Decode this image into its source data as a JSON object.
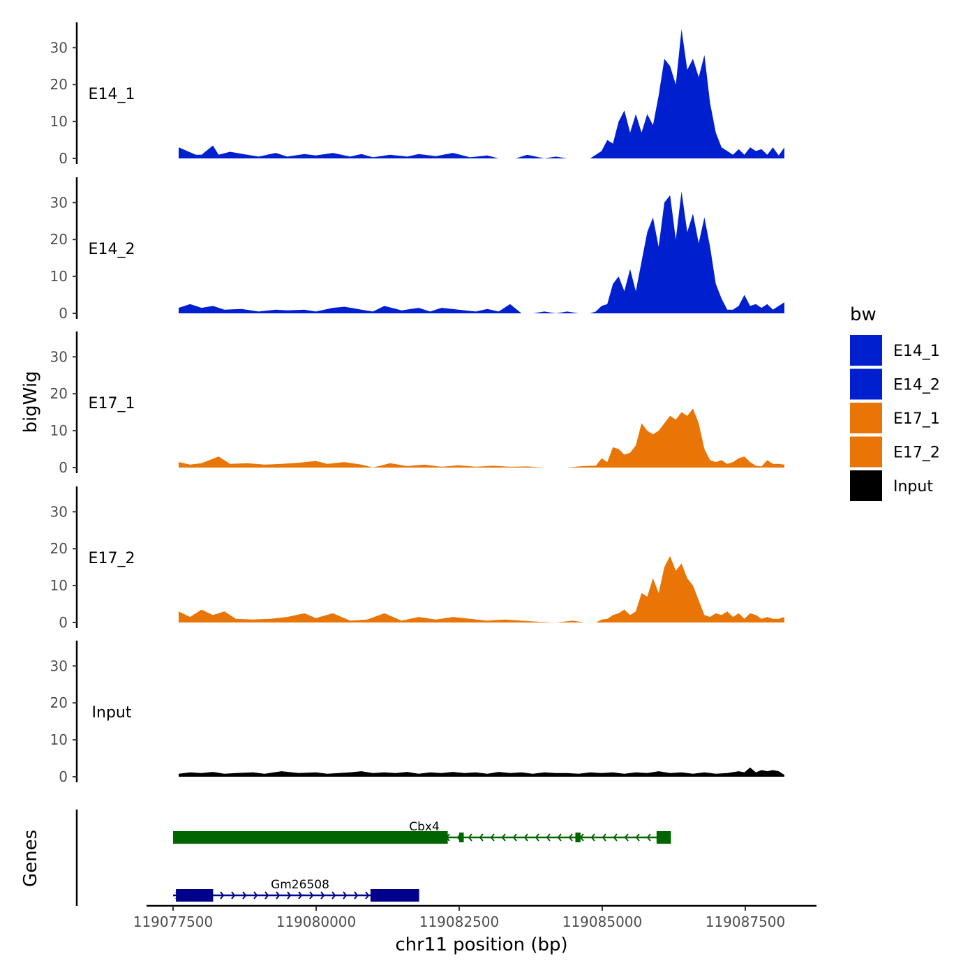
{
  "chart_data": {
    "type": "area",
    "title": "",
    "ylabel": "bigWig",
    "xlabel": "chr11 position (bp)",
    "ylim": [
      0,
      37
    ],
    "y_ticks": [
      0,
      10,
      20,
      30
    ],
    "xlim": [
      119076900,
      119088800
    ],
    "x_ticks": [
      119077500,
      119080000,
      119082500,
      119085000,
      119087500
    ],
    "x_tick_labels": [
      "119077500",
      "119080000",
      "119082500",
      "119085000",
      "119087500"
    ],
    "genes_label": "Genes",
    "legend": {
      "title": "bw",
      "entries": [
        {
          "name": "E14_1",
          "color": "#0020d0"
        },
        {
          "name": "E14_2",
          "color": "#0020d0"
        },
        {
          "name": "E17_1",
          "color": "#e87505"
        },
        {
          "name": "E17_2",
          "color": "#e87505"
        },
        {
          "name": "Input",
          "color": "#000000"
        }
      ]
    },
    "tracks": [
      {
        "name": "E14_1",
        "color": "#0020d0",
        "x": [
          119077600,
          119077900,
          119078000,
          119078200,
          119078300,
          119078500,
          119078800,
          119079000,
          119079300,
          119079500,
          119079800,
          119080000,
          119080300,
          119080600,
          119080800,
          119081000,
          119081300,
          119081600,
          119081800,
          119082100,
          119082400,
          119082700,
          119083000,
          119083200,
          119083500,
          119083700,
          119084000,
          119084200,
          119084400,
          119084600,
          119084800,
          119084900,
          119085000,
          119085100,
          119085200,
          119085300,
          119085400,
          119085500,
          119085600,
          119085700,
          119085800,
          119085900,
          119086000,
          119086100,
          119086200,
          119086300,
          119086400,
          119086500,
          119086600,
          119086700,
          119086800,
          119086900,
          119087000,
          119087100,
          119087200,
          119087300,
          119087400,
          119087500,
          119087600,
          119087700,
          119087800,
          119087900,
          119088000,
          119088100,
          119088200
        ],
        "y": [
          3,
          1,
          1,
          3.5,
          1,
          1.8,
          1,
          0.5,
          1.5,
          0.5,
          1.2,
          0.8,
          1.5,
          0.5,
          1.2,
          0.3,
          1,
          0.5,
          1.2,
          0.6,
          1.5,
          0.3,
          0.8,
          0,
          0,
          1,
          0,
          0.5,
          0,
          0,
          0,
          1,
          2,
          5,
          4,
          10,
          13,
          7,
          12,
          7,
          12,
          9,
          17,
          27,
          25,
          20,
          35,
          24,
          27,
          22,
          28,
          15,
          7,
          3,
          2,
          1,
          2.5,
          1,
          3,
          2,
          2.5,
          1,
          3,
          0.8,
          3
        ]
      },
      {
        "name": "E14_2",
        "color": "#0020d0",
        "x": [
          119077600,
          119077800,
          119078000,
          119078200,
          119078400,
          119078700,
          119079000,
          119079300,
          119079500,
          119079800,
          119080000,
          119080300,
          119080500,
          119080800,
          119081000,
          119081200,
          119081500,
          119081800,
          119082000,
          119082200,
          119082500,
          119082800,
          119083000,
          119083200,
          119083400,
          119083600,
          119083800,
          119084000,
          119084200,
          119084400,
          119084600,
          119084800,
          119084900,
          119085000,
          119085100,
          119085200,
          119085300,
          119085400,
          119085500,
          119085600,
          119085700,
          119085800,
          119085900,
          119086000,
          119086100,
          119086200,
          119086300,
          119086400,
          119086500,
          119086600,
          119086700,
          119086800,
          119086900,
          119087000,
          119087100,
          119087200,
          119087300,
          119087400,
          119087500,
          119087600,
          119087700,
          119087800,
          119087900,
          119088000,
          119088100,
          119088200
        ],
        "y": [
          1.5,
          2.5,
          1.5,
          2,
          1,
          1.2,
          0.5,
          1,
          0.8,
          1,
          0.5,
          1.5,
          1.8,
          1,
          0.5,
          2,
          0.8,
          1.5,
          0.5,
          1.5,
          1,
          0.5,
          1.2,
          0.5,
          2.5,
          0,
          0,
          0.5,
          0,
          0.5,
          0,
          0,
          0.5,
          2,
          2.5,
          8,
          10,
          6,
          12,
          6,
          14,
          22,
          26,
          18,
          30,
          32,
          20,
          33,
          22,
          27,
          19,
          26,
          18,
          8,
          4,
          1,
          1,
          2,
          5,
          2,
          2.5,
          1.5,
          2.5,
          1,
          2,
          3
        ]
      },
      {
        "name": "E17_1",
        "color": "#e87505",
        "x": [
          119077600,
          119077800,
          119078000,
          119078300,
          119078500,
          119078800,
          119079100,
          119079400,
          119079700,
          119080000,
          119080200,
          119080500,
          119080800,
          119081000,
          119081300,
          119081600,
          119081900,
          119082200,
          119082500,
          119082800,
          119083100,
          119083400,
          119083700,
          119084000,
          119084200,
          119084400,
          119084600,
          119084800,
          119084900,
          119085000,
          119085100,
          119085200,
          119085300,
          119085400,
          119085500,
          119085600,
          119085700,
          119085800,
          119085900,
          119086000,
          119086100,
          119086200,
          119086300,
          119086400,
          119086500,
          119086600,
          119086700,
          119086800,
          119086900,
          119087000,
          119087100,
          119087200,
          119087300,
          119087400,
          119087500,
          119087600,
          119087700,
          119087800,
          119087900,
          119088000,
          119088100,
          119088200
        ],
        "y": [
          1.5,
          0.8,
          1.2,
          3,
          1,
          1.2,
          0.8,
          1,
          1.3,
          1.8,
          1,
          1.5,
          0.8,
          0,
          1.2,
          0.4,
          0.8,
          0.2,
          0.6,
          0.2,
          0.5,
          0.2,
          0.3,
          0,
          0,
          0,
          0.3,
          0.5,
          0.5,
          2.5,
          1.5,
          5.5,
          5,
          3.5,
          4,
          6,
          12,
          10,
          9,
          10,
          12,
          14,
          13,
          15,
          14,
          16,
          12,
          5,
          2,
          1.5,
          2,
          1,
          1.5,
          2.5,
          3,
          1.5,
          0.5,
          0.3,
          2,
          1,
          1,
          0.8
        ]
      },
      {
        "name": "E17_2",
        "color": "#e87505",
        "x": [
          119077600,
          119077800,
          119078000,
          119078200,
          119078400,
          119078600,
          119078900,
          119079200,
          119079500,
          119079800,
          119080000,
          119080300,
          119080600,
          119080900,
          119081200,
          119081500,
          119081800,
          119082100,
          119082400,
          119082700,
          119083000,
          119083300,
          119083600,
          119083900,
          119084200,
          119084500,
          119084700,
          119084900,
          119085000,
          119085100,
          119085200,
          119085300,
          119085400,
          119085500,
          119085600,
          119085700,
          119085800,
          119085900,
          119086000,
          119086100,
          119086200,
          119086300,
          119086400,
          119086500,
          119086600,
          119086700,
          119086800,
          119086900,
          119087000,
          119087100,
          119087200,
          119087300,
          119087400,
          119087500,
          119087600,
          119087700,
          119087800,
          119087900,
          119088000,
          119088100,
          119088200
        ],
        "y": [
          3,
          1.5,
          3.5,
          2,
          3,
          1,
          0.8,
          1,
          1.5,
          2.5,
          1.2,
          2.5,
          0.5,
          0.8,
          2.5,
          0.5,
          1.5,
          0.8,
          1.5,
          1,
          0.5,
          0.8,
          0.5,
          0.2,
          0,
          0.5,
          0,
          0,
          0.8,
          1,
          2,
          2.5,
          3.5,
          2,
          3,
          8,
          7,
          12,
          8,
          15,
          18,
          14,
          16,
          12,
          10,
          6,
          2,
          1.5,
          2.5,
          2,
          3,
          1.5,
          2.5,
          1,
          2.5,
          2,
          1,
          1.5,
          1,
          1,
          1.5
        ]
      },
      {
        "name": "Input",
        "color": "#000000",
        "x": [
          119077600,
          119077800,
          119078000,
          119078200,
          119078400,
          119078600,
          119078900,
          119079100,
          119079400,
          119079700,
          119080000,
          119080200,
          119080400,
          119080600,
          119080800,
          119081000,
          119081200,
          119081400,
          119081600,
          119081800,
          119082000,
          119082200,
          119082400,
          119082600,
          119082800,
          119083000,
          119083200,
          119083400,
          119083600,
          119083800,
          119084000,
          119084200,
          119084400,
          119084600,
          119084800,
          119085000,
          119085200,
          119085400,
          119085600,
          119085800,
          119086000,
          119086200,
          119086400,
          119086600,
          119086800,
          119087000,
          119087200,
          119087400,
          119087500,
          119087600,
          119087700,
          119087800,
          119087900,
          119088000,
          119088100,
          119088200
        ],
        "y": [
          0.8,
          1.2,
          1,
          1.3,
          0.8,
          1,
          1.2,
          0.8,
          1.5,
          1,
          1.2,
          0.8,
          1,
          1.2,
          1.5,
          1,
          1.2,
          1,
          1.3,
          0.8,
          1.2,
          1,
          1.3,
          1,
          1.2,
          0.8,
          1.3,
          1,
          1.2,
          0.8,
          1.2,
          1,
          1,
          0.8,
          1.2,
          1,
          1.2,
          0.8,
          1.2,
          1,
          1.5,
          1,
          1.2,
          0.8,
          1.2,
          0.8,
          1,
          1.5,
          1.2,
          2.5,
          1.2,
          1.8,
          1.5,
          1.8,
          1.5,
          0.5
        ]
      }
    ],
    "genes": [
      {
        "name": "Cbx4",
        "color": "#006400",
        "start": 119077500,
        "end": 119086200,
        "strand": "-",
        "row": 1,
        "exons": [
          [
            119077500,
            119082300,
            "thick"
          ],
          [
            119082500,
            119082580,
            "thin"
          ],
          [
            119084530,
            119084620,
            "thin"
          ],
          [
            119085950,
            119086000,
            "thin"
          ],
          [
            119085950,
            119086200,
            "thick"
          ]
        ]
      },
      {
        "name": "Gm26508",
        "color": "#00008b",
        "start": 119077500,
        "end": 119081800,
        "strand": "+",
        "row": 2,
        "exons": [
          [
            119077550,
            119078200,
            "thick"
          ],
          [
            119080950,
            119081800,
            "thick"
          ]
        ]
      }
    ]
  }
}
